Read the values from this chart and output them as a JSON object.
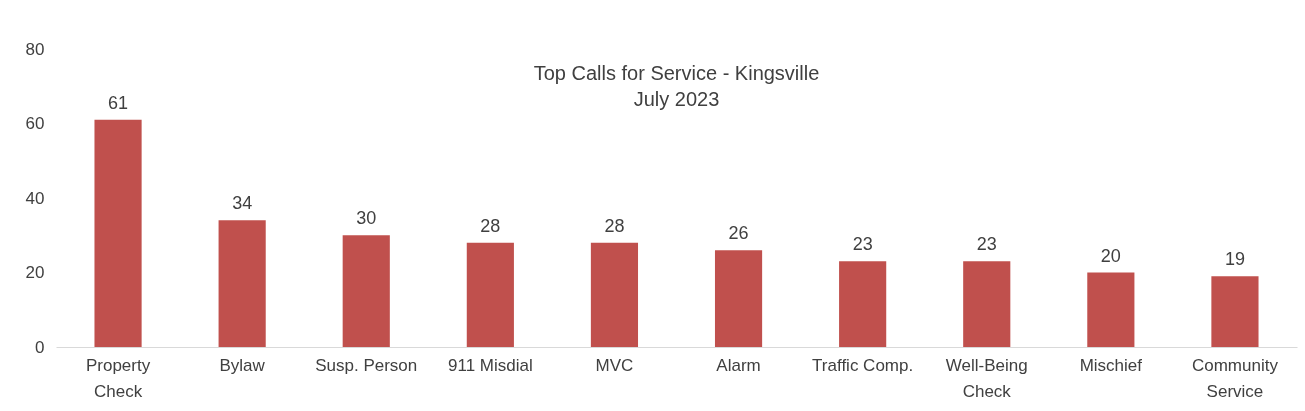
{
  "chart_data": {
    "type": "bar",
    "title": "Top Calls for Service - Kingsville",
    "subtitle": "July 2023",
    "categories": [
      "Property Check",
      "Bylaw",
      "Susp. Person",
      "911 Misdial",
      "MVC",
      "Alarm",
      "Traffic Comp.",
      "Well-Being Check",
      "Mischief",
      "Community Service"
    ],
    "values": [
      61,
      34,
      30,
      28,
      28,
      26,
      23,
      23,
      20,
      19
    ],
    "color": "#c0504d",
    "ylim": [
      0,
      80
    ],
    "yticks": [
      0,
      20,
      40,
      60,
      80
    ],
    "grid": false,
    "data_labels": true
  }
}
